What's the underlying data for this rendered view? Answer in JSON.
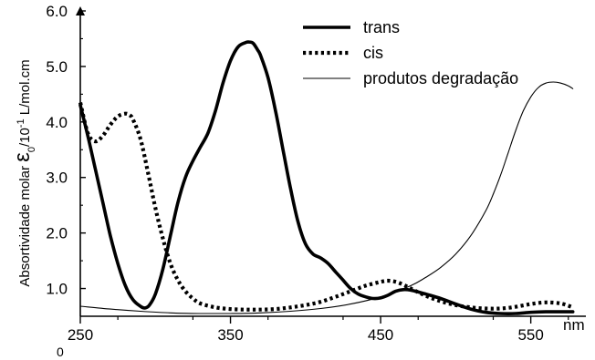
{
  "chart_data": {
    "type": "line",
    "xlabel": "nm",
    "ylabel": {
      "prefix": "Absortividade molar ",
      "symbol": "ε",
      "subscript": "0",
      "slash": "/10",
      "superscript": "-1",
      "unit": " L/mol.cm"
    },
    "origin_label": "0",
    "xlim": [
      250,
      580
    ],
    "ylim": [
      0.5,
      6.0
    ],
    "xticks": [
      250,
      350,
      450,
      550
    ],
    "xtick_labels": [
      "250",
      "350",
      "450",
      "550"
    ],
    "yticks": [
      1.0,
      2.0,
      3.0,
      4.0,
      5.0,
      6.0
    ],
    "ytick_labels": [
      "1.0",
      "2.0",
      "3.0",
      "4.0",
      "5.0",
      "6.0"
    ],
    "legend_position": "top-right",
    "series": [
      {
        "name": "trans",
        "style": "thick-solid",
        "color": "#000000",
        "x": [
          250,
          255,
          260,
          265,
          270,
          275,
          280,
          285,
          290,
          293,
          296,
          300,
          305,
          310,
          315,
          320,
          325,
          330,
          335,
          340,
          345,
          350,
          355,
          360,
          362,
          365,
          368,
          370,
          375,
          380,
          385,
          390,
          395,
          400,
          405,
          410,
          415,
          420,
          425,
          430,
          435,
          440,
          445,
          450,
          455,
          460,
          465,
          470,
          480,
          490,
          500,
          510,
          520,
          530,
          540,
          550,
          560,
          570,
          578
        ],
        "y": [
          4.3,
          3.75,
          3.15,
          2.55,
          1.95,
          1.45,
          1.05,
          0.8,
          0.68,
          0.65,
          0.7,
          0.9,
          1.35,
          1.95,
          2.55,
          3.0,
          3.3,
          3.55,
          3.8,
          4.2,
          4.7,
          5.1,
          5.35,
          5.43,
          5.44,
          5.42,
          5.3,
          5.2,
          4.8,
          4.2,
          3.5,
          2.8,
          2.2,
          1.8,
          1.62,
          1.55,
          1.45,
          1.3,
          1.15,
          1.0,
          0.9,
          0.85,
          0.82,
          0.83,
          0.88,
          0.95,
          0.98,
          0.97,
          0.9,
          0.82,
          0.72,
          0.63,
          0.57,
          0.55,
          0.55,
          0.57,
          0.58,
          0.58,
          0.58
        ]
      },
      {
        "name": "cis",
        "style": "dotted",
        "color": "#000000",
        "x": [
          250,
          255,
          260,
          265,
          270,
          275,
          280,
          283,
          285,
          290,
          295,
          300,
          305,
          310,
          315,
          320,
          325,
          330,
          340,
          350,
          360,
          370,
          380,
          390,
          400,
          410,
          420,
          430,
          440,
          450,
          455,
          460,
          465,
          470,
          480,
          490,
          500,
          510,
          520,
          530,
          540,
          550,
          560,
          570,
          578
        ],
        "y": [
          4.35,
          3.8,
          3.65,
          3.75,
          3.95,
          4.1,
          4.15,
          4.12,
          4.05,
          3.7,
          3.1,
          2.45,
          1.9,
          1.45,
          1.15,
          0.95,
          0.82,
          0.73,
          0.66,
          0.63,
          0.62,
          0.62,
          0.63,
          0.66,
          0.7,
          0.76,
          0.85,
          0.95,
          1.05,
          1.12,
          1.14,
          1.12,
          1.07,
          1.0,
          0.87,
          0.77,
          0.7,
          0.66,
          0.64,
          0.64,
          0.67,
          0.72,
          0.75,
          0.73,
          0.66
        ]
      },
      {
        "name": "produtos degradação",
        "style": "thin-solid",
        "color": "#000000",
        "x": [
          250,
          270,
          290,
          310,
          330,
          350,
          370,
          390,
          410,
          430,
          450,
          470,
          480,
          490,
          500,
          510,
          520,
          525,
          530,
          535,
          540,
          545,
          550,
          555,
          560,
          565,
          570,
          575,
          578
        ],
        "y": [
          0.68,
          0.63,
          0.59,
          0.56,
          0.55,
          0.55,
          0.56,
          0.59,
          0.64,
          0.72,
          0.85,
          1.05,
          1.2,
          1.38,
          1.62,
          1.95,
          2.4,
          2.7,
          3.05,
          3.45,
          3.85,
          4.2,
          4.45,
          4.62,
          4.7,
          4.72,
          4.7,
          4.65,
          4.6
        ]
      }
    ]
  }
}
